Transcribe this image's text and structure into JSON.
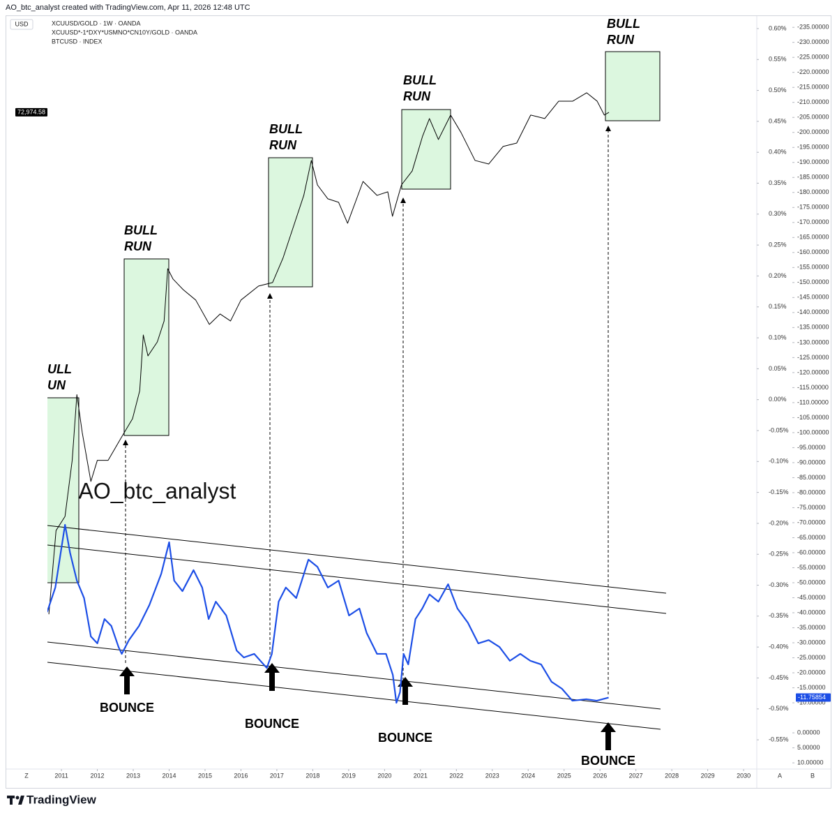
{
  "header": {
    "credit": "AO_btc_analyst created with TradingView.com, Apr 11, 2026 12:48 UTC"
  },
  "ui": {
    "currency": "USD",
    "zoom": "Z",
    "auto": "A",
    "log": "B"
  },
  "footer": {
    "brand": "TradingView"
  },
  "chart_data": {
    "type": "line",
    "legend": {
      "main": "XCUUSD/GOLD · 1W · OANDA"
    },
    "xlim": [
      2010.61,
      2030.27
    ],
    "xticks": [
      2011,
      2012,
      2013,
      2014,
      2015,
      2016,
      2017,
      2018,
      2019,
      2020,
      2021,
      2022,
      2023,
      2024,
      2025,
      2026,
      2027,
      2028,
      2029,
      2030
    ],
    "grid": false,
    "ylim": [
      11.6,
      -238.3
    ],
    "yticks": [
      {
        "value": -235,
        "label": "-235.00000"
      },
      {
        "value": -230,
        "label": "-230.00000"
      },
      {
        "value": -225,
        "label": "-225.00000"
      },
      {
        "value": -220,
        "label": "-220.00000"
      },
      {
        "value": -215,
        "label": "-215.00000"
      },
      {
        "value": -210,
        "label": "-210.00000"
      },
      {
        "value": -205,
        "label": "-205.00000"
      },
      {
        "value": -200,
        "label": "-200.00000"
      },
      {
        "value": -195,
        "label": "-195.00000"
      },
      {
        "value": -190,
        "label": "-190.00000"
      },
      {
        "value": -185,
        "label": "-185.00000"
      },
      {
        "value": -180,
        "label": "-180.00000"
      },
      {
        "value": -175,
        "label": "-175.00000"
      },
      {
        "value": -170,
        "label": "-170.00000"
      },
      {
        "value": -165,
        "label": "-165.00000"
      },
      {
        "value": -160,
        "label": "-160.00000"
      },
      {
        "value": -155,
        "label": "-155.00000"
      },
      {
        "value": -150,
        "label": "-150.00000"
      },
      {
        "value": -145,
        "label": "-145.00000"
      },
      {
        "value": -140,
        "label": "-140.00000"
      },
      {
        "value": -135,
        "label": "-135.00000"
      },
      {
        "value": -130,
        "label": "-130.00000"
      },
      {
        "value": -125,
        "label": "-125.00000"
      },
      {
        "value": -120,
        "label": "-120.00000"
      },
      {
        "value": -115,
        "label": "-115.00000"
      },
      {
        "value": -110,
        "label": "-110.00000"
      },
      {
        "value": -105,
        "label": "-105.00000"
      },
      {
        "value": -100,
        "label": "-100.00000"
      },
      {
        "value": -95,
        "label": "-95.00000"
      },
      {
        "value": -90,
        "label": "-90.00000"
      },
      {
        "value": -85,
        "label": "-85.00000"
      },
      {
        "value": -80,
        "label": "-80.00000"
      },
      {
        "value": -75,
        "label": "-75.00000"
      },
      {
        "value": -70,
        "label": "-70.00000"
      },
      {
        "value": -65,
        "label": "-65.00000"
      },
      {
        "value": -60,
        "label": "-60.00000"
      },
      {
        "value": -55,
        "label": "-55.00000"
      },
      {
        "value": -50,
        "label": "-50.00000"
      },
      {
        "value": -45,
        "label": "-45.00000"
      },
      {
        "value": -40,
        "label": "-40.00000"
      },
      {
        "value": -35,
        "label": "-35.00000"
      },
      {
        "value": -30,
        "label": "-30.00000"
      },
      {
        "value": -25,
        "label": "-25.00000"
      },
      {
        "value": -20,
        "label": "-20.00000"
      },
      {
        "value": -15,
        "label": "-15.00000"
      },
      {
        "value": -10,
        "label": "-10.00000"
      },
      {
        "value": 0,
        "label": "0.00000"
      },
      {
        "value": 5,
        "label": "5.00000"
      },
      {
        "value": 10,
        "label": "10.00000"
      }
    ],
    "y2lim": [
      -0.595,
      0.618
    ],
    "y2ticks": [
      {
        "value": 0.6,
        "label": "0.60%"
      },
      {
        "value": 0.55,
        "label": "0.55%"
      },
      {
        "value": 0.5,
        "label": "0.50%"
      },
      {
        "value": 0.45,
        "label": "0.45%"
      },
      {
        "value": 0.4,
        "label": "0.40%"
      },
      {
        "value": 0.35,
        "label": "0.35%"
      },
      {
        "value": 0.3,
        "label": "0.30%"
      },
      {
        "value": 0.25,
        "label": "0.25%"
      },
      {
        "value": 0.2,
        "label": "0.20%"
      },
      {
        "value": 0.15,
        "label": "0.15%"
      },
      {
        "value": 0.1,
        "label": "0.10%"
      },
      {
        "value": 0.05,
        "label": "0.05%"
      },
      {
        "value": 0,
        "label": "0.00%"
      },
      {
        "value": -0.05,
        "label": "-0.05%"
      },
      {
        "value": -0.1,
        "label": "-0.10%"
      },
      {
        "value": -0.15,
        "label": "-0.15%"
      },
      {
        "value": -0.2,
        "label": "-0.20%"
      },
      {
        "value": -0.25,
        "label": "-0.25%"
      },
      {
        "value": -0.3,
        "label": "-0.30%"
      },
      {
        "value": -0.35,
        "label": "-0.35%"
      },
      {
        "value": -0.4,
        "label": "-0.40%"
      },
      {
        "value": -0.45,
        "label": "-0.45%"
      },
      {
        "value": -0.5,
        "label": "-0.50%"
      },
      {
        "value": -0.55,
        "label": "-0.55%"
      }
    ],
    "y3lim": [
      0.00109,
      990000
    ],
    "y3_log": true,
    "series": [
      {
        "name": "XCUUSD*-1*DXY*USMNO*CN10Y/GOLD · OANDA",
        "color": "#1c4ee6",
        "axis": "y",
        "last_label": "-11.75854",
        "x": [
          2010.6,
          2010.83,
          2011.1,
          2011.24,
          2011.43,
          2011.63,
          2011.82,
          2012.0,
          2012.2,
          2012.39,
          2012.59,
          2012.68,
          2012.88,
          2013.16,
          2013.45,
          2013.78,
          2014.0,
          2014.14,
          2014.37,
          2014.68,
          2014.92,
          2015.1,
          2015.3,
          2015.59,
          2015.88,
          2016.08,
          2016.37,
          2016.72,
          2016.86,
          2017.05,
          2017.25,
          2017.54,
          2017.88,
          2018.13,
          2018.42,
          2018.72,
          2019.01,
          2019.3,
          2019.5,
          2019.79,
          2020.04,
          2020.23,
          2020.33,
          2020.43,
          2020.53,
          2020.66,
          2020.86,
          2021.05,
          2021.25,
          2021.5,
          2021.77,
          2022.03,
          2022.32,
          2022.61,
          2022.9,
          2023.2,
          2023.49,
          2023.78,
          2024.06,
          2024.36,
          2024.65,
          2024.94,
          2025.23,
          2025.62,
          2025.91,
          2026.24
        ],
        "values": [
          -40.2,
          -48.4,
          -69.3,
          -60,
          -50.7,
          -44.9,
          -32.1,
          -29.8,
          -37.9,
          -35.6,
          -28.6,
          -26.3,
          -30.9,
          -35.6,
          -42.6,
          -53,
          -63.5,
          -50.7,
          -47.2,
          -54.2,
          -48.4,
          -37.9,
          -43.7,
          -39.1,
          -27.4,
          -25.1,
          -26.3,
          -21.6,
          -26.3,
          -43.7,
          -48.4,
          -44.9,
          -57.7,
          -55.3,
          -48.4,
          -50.7,
          -39.1,
          -41.4,
          -33.3,
          -26.3,
          -26.3,
          -19.3,
          -10,
          -13.5,
          -26.3,
          -22.8,
          -37.9,
          -41.4,
          -46.1,
          -43.7,
          -49.5,
          -41.4,
          -36.7,
          -29.8,
          -30.9,
          -28.6,
          -24,
          -26.3,
          -24,
          -22.8,
          -17,
          -14.7,
          -10.7,
          -11.2,
          -10.7,
          -11.75854
        ]
      },
      {
        "name": "BTCUSD · INDEX",
        "color": "#000000",
        "axis": "y3",
        "last_label": "72,974.58",
        "x": [
          2010.65,
          2010.85,
          2011.1,
          2011.3,
          2011.43,
          2011.58,
          2011.82,
          2012.0,
          2012.3,
          2012.69,
          2012.98,
          2013.18,
          2013.28,
          2013.41,
          2013.67,
          2013.86,
          2013.96,
          2014.11,
          2014.39,
          2014.74,
          2015.12,
          2015.42,
          2015.71,
          2016.0,
          2016.49,
          2016.88,
          2017.17,
          2017.46,
          2017.75,
          2017.96,
          2018.13,
          2018.42,
          2018.72,
          2018.97,
          2019.4,
          2019.79,
          2020.09,
          2020.22,
          2020.47,
          2020.77,
          2021.06,
          2021.25,
          2021.5,
          2021.84,
          2022.13,
          2022.52,
          2022.9,
          2023.3,
          2023.68,
          2024.07,
          2024.46,
          2024.85,
          2025.24,
          2025.63,
          2025.92,
          2026.12,
          2026.25
        ],
        "values": [
          0.074,
          0.74,
          1.09,
          5.1,
          31,
          10.9,
          2.85,
          5.1,
          5.1,
          9.9,
          16,
          34.5,
          160,
          90,
          132,
          235,
          990,
          743,
          557,
          418,
          214,
          285,
          235,
          418,
          614,
          676,
          1321,
          3133,
          7430,
          19400,
          9900,
          6760,
          6140,
          3450,
          10900,
          7430,
          8190,
          4180,
          9900,
          14550,
          38000,
          61400,
          34500,
          67600,
          41800,
          19400,
          17600,
          28500,
          31300,
          67600,
          61400,
          99100,
          99100,
          124700,
          99100,
          67600,
          72974.58
        ]
      }
    ],
    "annotations": {
      "watermark": "@AO_btc_analyst",
      "bull_runs": [
        [
          "BULL",
          "RUN"
        ],
        [
          "BULL",
          "RUN"
        ],
        [
          "BULL",
          "RUN"
        ],
        [
          "BULL",
          "RUN"
        ],
        [
          "BULL",
          "RUN"
        ]
      ],
      "bounces": [
        "BOUNCE",
        "BOUNCE",
        "BOUNCE",
        "BOUNCE"
      ]
    }
  }
}
